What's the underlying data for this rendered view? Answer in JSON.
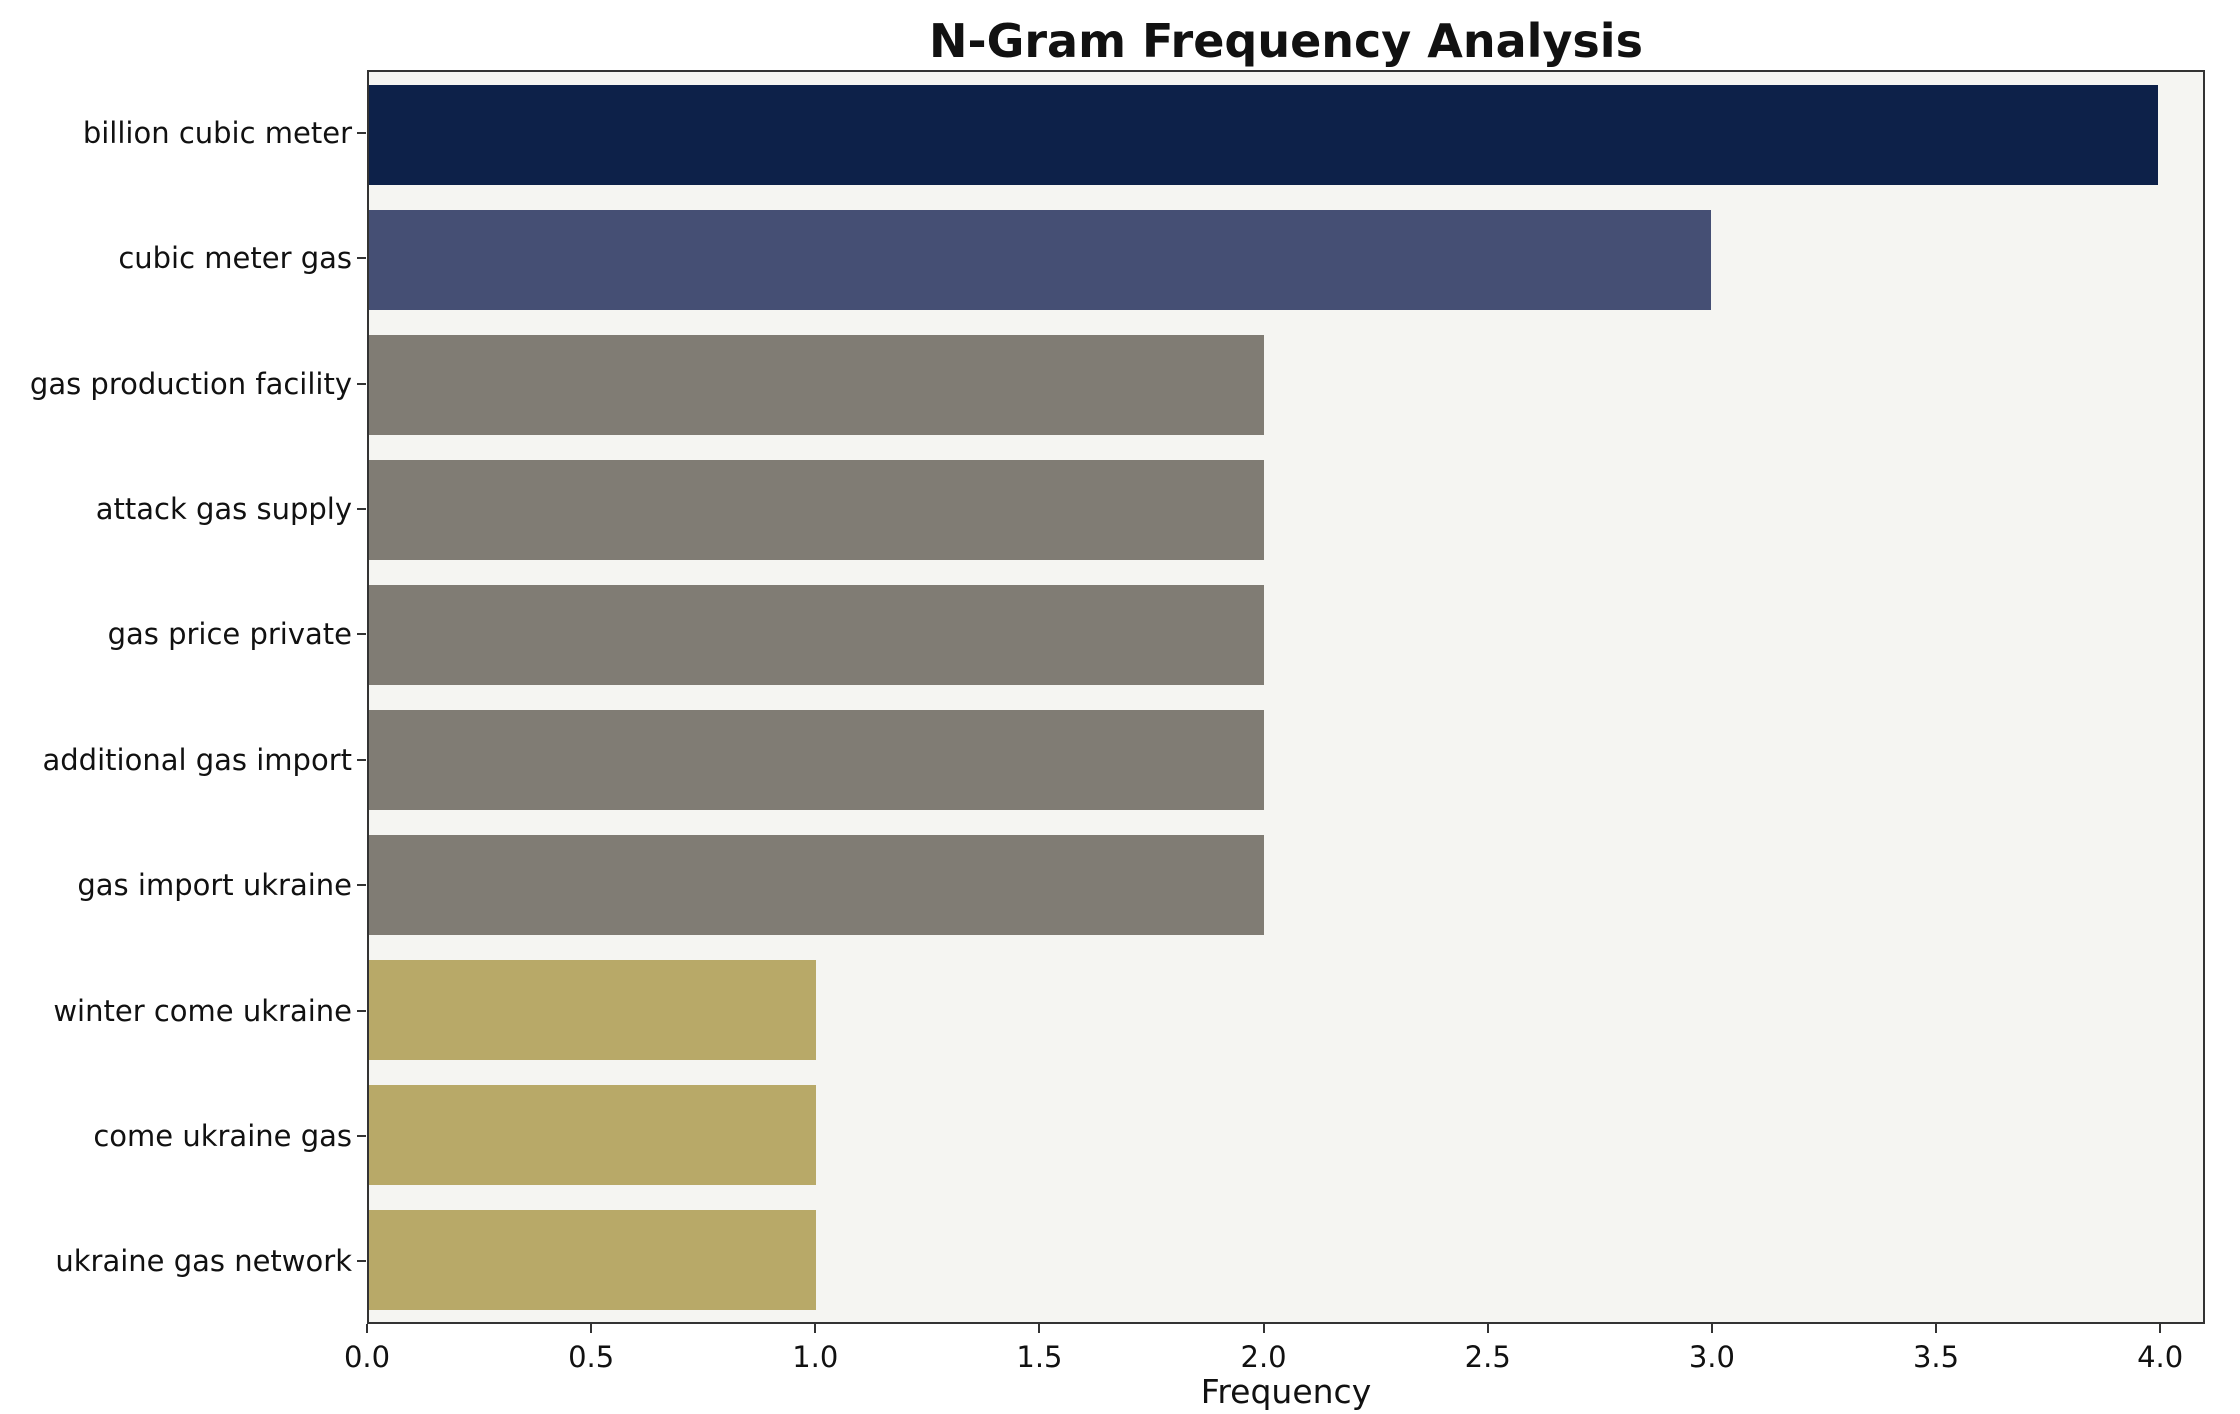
{
  "chart_data": {
    "type": "bar",
    "orientation": "horizontal",
    "title": "N-Gram Frequency Analysis",
    "xlabel": "Frequency",
    "ylabel": "",
    "xlim": [
      0,
      4.1
    ],
    "grid": false,
    "plot_background": "#f5f5f2",
    "categories": [
      "billion cubic meter",
      "cubic meter gas",
      "gas production facility",
      "attack gas supply",
      "gas price private",
      "additional gas import",
      "gas import ukraine",
      "winter come ukraine",
      "come ukraine gas",
      "ukraine gas network"
    ],
    "values": [
      4,
      3,
      2,
      2,
      2,
      2,
      2,
      1,
      1,
      1
    ],
    "bar_colors": [
      "#0d2149",
      "#454f74",
      "#807c74",
      "#807c74",
      "#807c74",
      "#807c74",
      "#807c74",
      "#b8a968",
      "#b8a968",
      "#b8a968"
    ],
    "xticks": [
      {
        "value": 0.0,
        "label": "0.0"
      },
      {
        "value": 0.5,
        "label": "0.5"
      },
      {
        "value": 1.0,
        "label": "1.0"
      },
      {
        "value": 1.5,
        "label": "1.5"
      },
      {
        "value": 2.0,
        "label": "2.0"
      },
      {
        "value": 2.5,
        "label": "2.5"
      },
      {
        "value": 3.0,
        "label": "3.0"
      },
      {
        "value": 3.5,
        "label": "3.5"
      },
      {
        "value": 4.0,
        "label": "4.0"
      }
    ]
  }
}
